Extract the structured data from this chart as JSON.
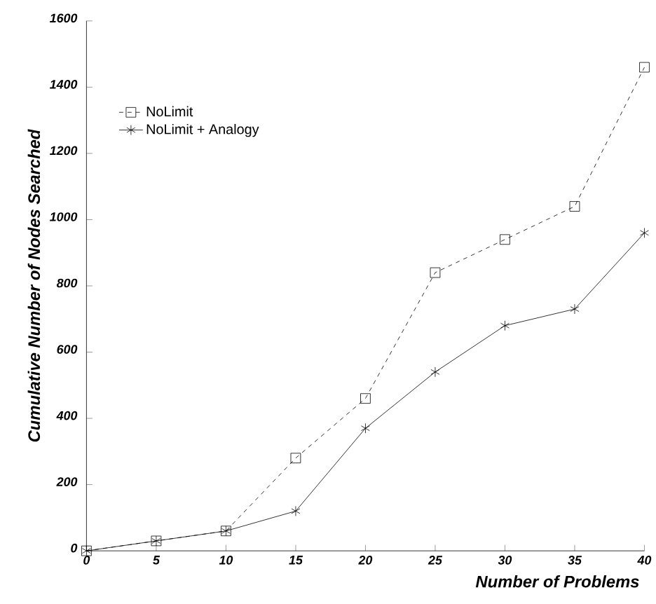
{
  "chart_data": {
    "type": "line",
    "xlabel": "Number of Problems",
    "ylabel": "Cumulative Number of Nodes Searched",
    "x": [
      0,
      5,
      10,
      15,
      20,
      25,
      30,
      35,
      40
    ],
    "series": [
      {
        "name": "NoLimit",
        "color": "#000000",
        "values": [
          0,
          30,
          60,
          280,
          460,
          840,
          940,
          1040,
          1460
        ],
        "marker": "square",
        "line_style": "dashed"
      },
      {
        "name": "NoLimit + Analogy",
        "color": "#000000",
        "values": [
          0,
          30,
          60,
          120,
          370,
          540,
          680,
          730,
          960
        ],
        "marker": "cross",
        "line_style": "solid"
      }
    ],
    "xlim": [
      0,
      40
    ],
    "ylim": [
      0,
      1600
    ],
    "xticks": [
      0,
      5,
      10,
      15,
      20,
      25,
      30,
      35,
      40
    ],
    "yticks": [
      0,
      200,
      400,
      600,
      800,
      1000,
      1200,
      1400,
      1600
    ],
    "grid": false,
    "legend": "top left"
  }
}
